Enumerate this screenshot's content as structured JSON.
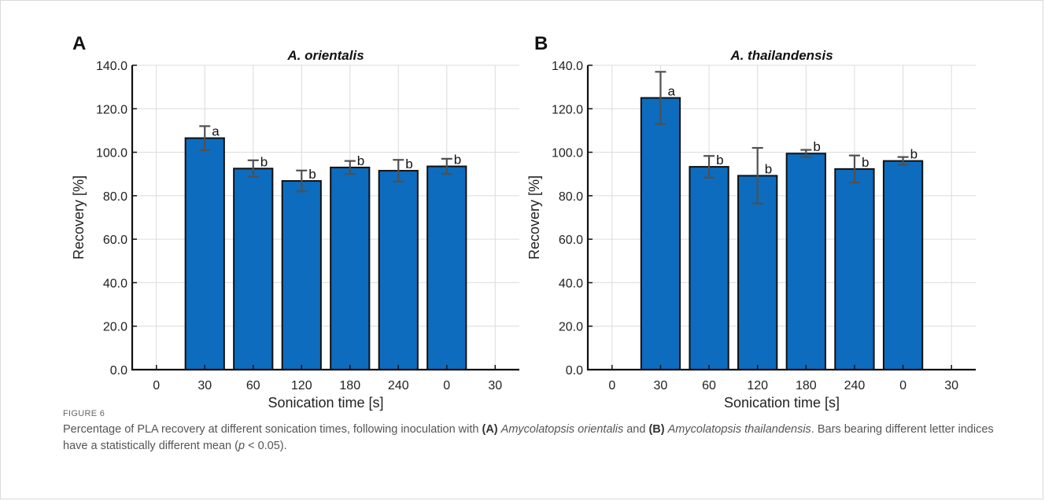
{
  "chart_data": [
    {
      "type": "bar",
      "panel": "A",
      "title": "A. orientalis",
      "xlabel": "Sonication time [s]",
      "ylabel": "Recovery [%]",
      "ylim": [
        0,
        140
      ],
      "yticks": [
        "0.0",
        "20.0",
        "40.0",
        "60.0",
        "80.0",
        "100.0",
        "120.0",
        "140.0"
      ],
      "xticks": [
        "0",
        "30",
        "60",
        "120",
        "180",
        "240",
        "0",
        "30"
      ],
      "categories": [
        "30",
        "60",
        "120",
        "180",
        "240",
        "0"
      ],
      "values": [
        106.5,
        92.5,
        86.8,
        93.0,
        91.5,
        93.5
      ],
      "errors": [
        5.5,
        3.8,
        4.8,
        3.0,
        5.0,
        3.5
      ],
      "letters": [
        "a",
        "b",
        "b",
        "b",
        "b",
        "b"
      ],
      "grid": true
    },
    {
      "type": "bar",
      "panel": "B",
      "title": "A. thailandensis",
      "xlabel": "Sonication time [s]",
      "ylabel": "Recovery [%]",
      "ylim": [
        0,
        140
      ],
      "yticks": [
        "0.0",
        "20.0",
        "40.0",
        "60.0",
        "80.0",
        "100.0",
        "120.0",
        "140.0"
      ],
      "xticks": [
        "0",
        "30",
        "60",
        "120",
        "180",
        "240",
        "0",
        "30"
      ],
      "categories": [
        "30",
        "60",
        "120",
        "180",
        "240",
        "0"
      ],
      "values": [
        125.0,
        93.3,
        89.2,
        99.4,
        92.3,
        96.0
      ],
      "errors": [
        12.0,
        5.0,
        12.8,
        1.7,
        6.2,
        1.8
      ],
      "letters": [
        "a",
        "b",
        "b",
        "b",
        "b",
        "b"
      ],
      "grid": true
    }
  ],
  "colors": {
    "bar": "#0d6cbe",
    "error": "#505050",
    "grid": "#dcdcdc"
  },
  "caption": {
    "label": "FIGURE 6",
    "text_1": "Percentage of PLA recovery at different sonication times, following inoculation with ",
    "ref_a": "(A)",
    "species_a": "Amycolatopsis orientalis",
    "text_2": " and ",
    "ref_b": "(B)",
    "species_b": "Amycolatopsis thailandensis",
    "text_3": ". Bars bearing different letter indices have a statistically different mean (",
    "p": "p",
    "text_4": " < 0.05)."
  }
}
